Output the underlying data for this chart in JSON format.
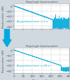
{
  "title1": "Rayleigh backscatter",
  "title2": "Rayleigh backscatter",
  "annotation1": "Acquisition time = 1 s",
  "annotation2": "Acquisition time = 20 s",
  "xlabel": "Distance (km)",
  "ylabel": "Backscatter (dB)",
  "xlim": [
    0,
    300
  ],
  "ylim": [
    -45,
    5
  ],
  "yticks": [
    0,
    -10,
    -20,
    -30,
    -40
  ],
  "xticks": [
    0,
    50,
    100,
    150,
    200,
    250,
    300
  ],
  "xtick_labels": [
    "0",
    "50",
    "100",
    "150",
    "200",
    "250",
    "300"
  ],
  "bg_color": "#d0d8e0",
  "plot_bg": "#ffffff",
  "trace_color": "#00aadd",
  "grid_color": "#aaaaaa",
  "title_color": "#555555",
  "annot_color": "#00bbcc",
  "arrow_color": "#00aadd",
  "tick_color": "#555555",
  "label_color": "#555555"
}
